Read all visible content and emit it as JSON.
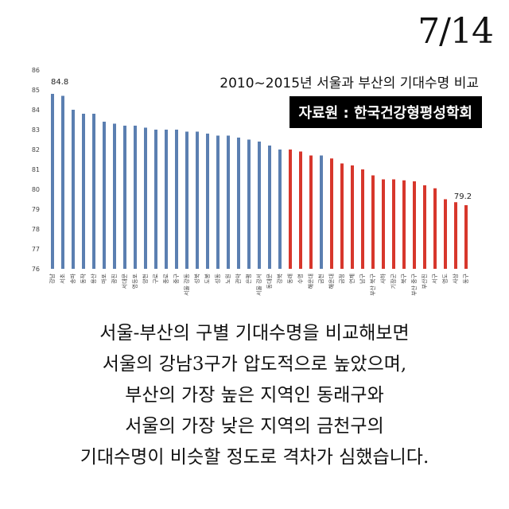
{
  "page_number": "7/14",
  "chart_data": {
    "type": "bar",
    "title": "2010~2015년 서울과 부산의 기대수명 비교",
    "source": "자료원 : 한국건강형평성학회",
    "ylim": [
      76,
      86
    ],
    "yticks": [
      76,
      77,
      78,
      79,
      80,
      81,
      82,
      83,
      84,
      85,
      86
    ],
    "grid": false,
    "categories": [
      "강남",
      "서초",
      "송파",
      "동작",
      "용산",
      "마포",
      "광진",
      "서대문",
      "영등포",
      "양천",
      "구로",
      "종로",
      "중구",
      "서울 강동",
      "성북",
      "도봉",
      "성동",
      "노원",
      "관악",
      "은평",
      "서울 강서",
      "동대문",
      "강북",
      "동래",
      "수영",
      "해운대",
      "금천",
      "해운대",
      "금정",
      "연제",
      "남구",
      "부산 북구",
      "사하",
      "기장군",
      "북구",
      "부산 중구",
      "부산진",
      "서구",
      "영도",
      "사상",
      "동구"
    ],
    "values": [
      84.8,
      84.7,
      84.0,
      83.8,
      83.8,
      83.4,
      83.3,
      83.2,
      83.2,
      83.1,
      83.0,
      83.0,
      83.0,
      82.9,
      82.9,
      82.8,
      82.7,
      82.7,
      82.6,
      82.5,
      82.4,
      82.2,
      82.0,
      82.0,
      81.9,
      81.7,
      81.7,
      81.55,
      81.3,
      81.2,
      81.0,
      80.7,
      80.5,
      80.5,
      80.45,
      80.4,
      80.2,
      80.05,
      79.5,
      79.35,
      79.2
    ],
    "series_colors": [
      "#5b7fb1",
      "#d7372c"
    ],
    "color_index": [
      0,
      0,
      0,
      0,
      0,
      0,
      0,
      0,
      0,
      0,
      0,
      0,
      0,
      0,
      0,
      0,
      0,
      0,
      0,
      0,
      0,
      0,
      0,
      1,
      1,
      1,
      0,
      1,
      1,
      1,
      1,
      1,
      1,
      1,
      1,
      1,
      1,
      1,
      1,
      1,
      1
    ],
    "annotations": [
      {
        "index": 0,
        "text": "84.8"
      },
      {
        "index": 40,
        "text": "79.2"
      }
    ]
  },
  "caption": [
    "서울-부산의 구별 기대수명을 비교해보면",
    "서울의 강남3구가 압도적으로 높았으며,",
    "부산의 가장 높은 지역인 동래구와",
    "서울의 가장 낮은 지역의 금천구의",
    "기대수명이 비슷할 정도로 격차가 심했습니다."
  ]
}
